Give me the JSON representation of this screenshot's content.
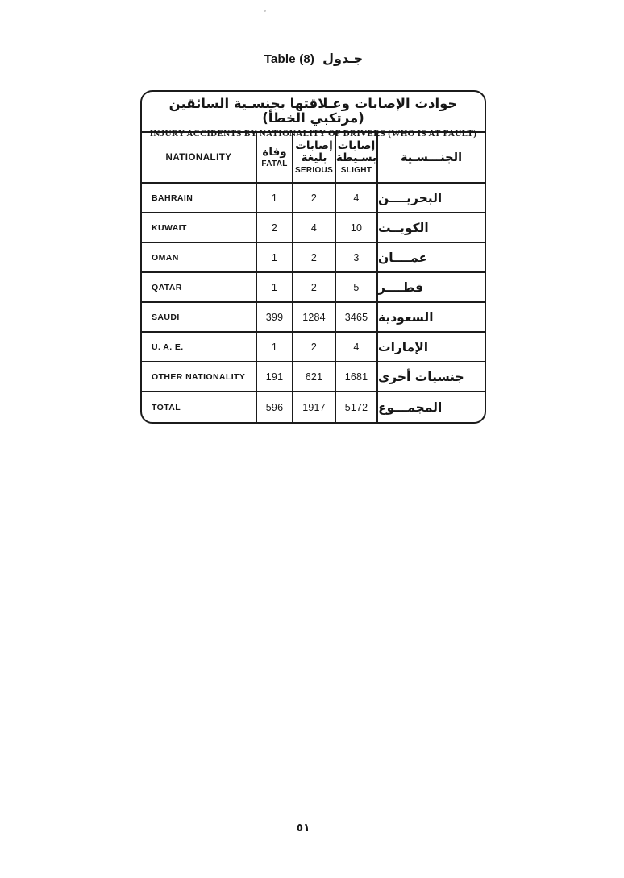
{
  "page": {
    "heading": {
      "en": "Table (8)",
      "ar": "جـدول"
    },
    "page_number": "٥١"
  },
  "table": {
    "title_ar": "حوادث الإصابات وعـلاقتها بجنسـية السائقين (مرتكبي الخطأ)",
    "title_en": "INJURY ACCIDENTS  BY NATIONALITY OF DRIVERS (WHO IS AT FAULT)",
    "headers": {
      "nationality_en": "NATIONALITY",
      "fatal_ar": "وفاة",
      "fatal_en": "FATAL",
      "serious_ar": "إصابات\nبليغة",
      "serious_en": "SERIOUS",
      "slight_ar": "إصابات\nبسـيطة",
      "slight_en": "SLIGHT",
      "nationality_ar": "الجنـــسـية"
    },
    "rows": [
      {
        "en": "BAHRAIN",
        "fatal": "1",
        "serious": "2",
        "slight": "4",
        "ar": "البحريــــن"
      },
      {
        "en": "KUWAIT",
        "fatal": "2",
        "serious": "4",
        "slight": "10",
        "ar": "الكويــت"
      },
      {
        "en": "OMAN",
        "fatal": "1",
        "serious": "2",
        "slight": "3",
        "ar": "عمــــان"
      },
      {
        "en": "QATAR",
        "fatal": "1",
        "serious": "2",
        "slight": "5",
        "ar": "قطــــر"
      },
      {
        "en": "SAUDI",
        "fatal": "399",
        "serious": "1284",
        "slight": "3465",
        "ar": "السعودية"
      },
      {
        "en": "U. A. E.",
        "fatal": "1",
        "serious": "2",
        "slight": "4",
        "ar": "الإمارات"
      },
      {
        "en": "OTHER NATIONALITY",
        "fatal": "191",
        "serious": "621",
        "slight": "1681",
        "ar": "جنسيات أخرى"
      },
      {
        "en": "TOTAL",
        "fatal": "596",
        "serious": "1917",
        "slight": "5172",
        "ar": "المجمـــوع"
      }
    ]
  }
}
